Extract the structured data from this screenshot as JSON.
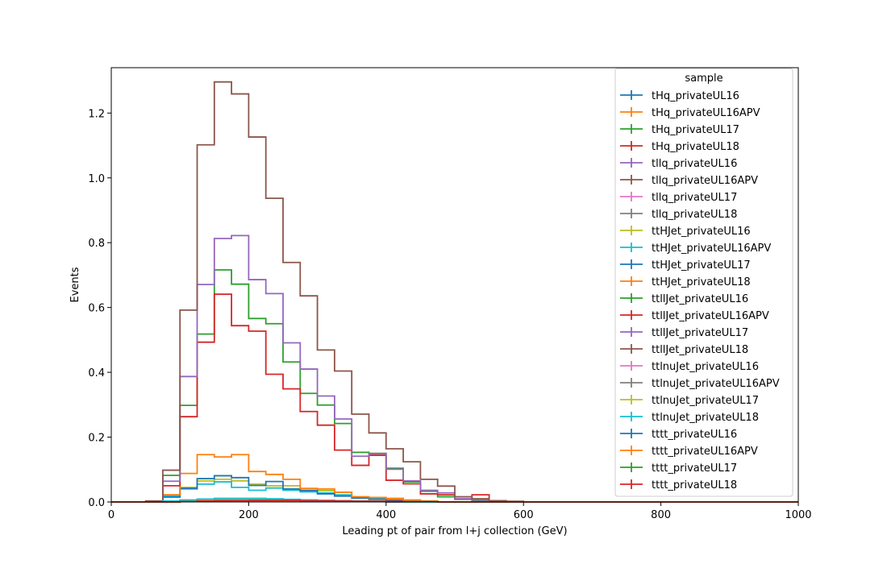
{
  "chart_data": {
    "type": "step-histogram",
    "xlabel": "Leading pt of pair from l+j collection (GeV)",
    "ylabel": "Events",
    "xlim": [
      0,
      1000
    ],
    "ylim": [
      0,
      1.34
    ],
    "xticks": [
      0,
      200,
      400,
      600,
      800,
      1000
    ],
    "yticks": [
      0.0,
      0.2,
      0.4,
      0.6,
      0.8,
      1.0,
      1.2
    ],
    "xtick_labels": [
      "0",
      "200",
      "400",
      "600",
      "800",
      "1000"
    ],
    "ytick_labels": [
      "0.0",
      "0.2",
      "0.4",
      "0.6",
      "0.8",
      "1.0",
      "1.2"
    ],
    "grid": false,
    "legend": {
      "title": "sample",
      "placement": "top-right"
    },
    "bin_edges": [
      0,
      25,
      50,
      75,
      100,
      125,
      150,
      175,
      200,
      225,
      250,
      275,
      300,
      325,
      350,
      375,
      400,
      425,
      450,
      475,
      500,
      525,
      550,
      575,
      600,
      625,
      650,
      675,
      700,
      725,
      750,
      775,
      800,
      825,
      850,
      875,
      900,
      925,
      950,
      975,
      1000
    ],
    "series": [
      {
        "name": "tHq_privateUL16",
        "color": "#1f77b4",
        "values": [
          0,
          0,
          0,
          0.002,
          0.003,
          0.004,
          0.004,
          0.004,
          0.004,
          0.003,
          0.003,
          0.002,
          0.002,
          0.001,
          0.001,
          0.001,
          0,
          0,
          0,
          0,
          0,
          0,
          0,
          0,
          0,
          0,
          0,
          0,
          0,
          0,
          0,
          0,
          0,
          0,
          0,
          0,
          0,
          0,
          0,
          0
        ]
      },
      {
        "name": "tHq_privateUL16APV",
        "color": "#ff7f0e",
        "values": [
          0,
          0,
          0,
          0.002,
          0.003,
          0.004,
          0.004,
          0.004,
          0.004,
          0.003,
          0.003,
          0.002,
          0.002,
          0.001,
          0.001,
          0.001,
          0,
          0,
          0,
          0,
          0,
          0,
          0,
          0,
          0,
          0,
          0,
          0,
          0,
          0,
          0,
          0,
          0,
          0,
          0,
          0,
          0,
          0,
          0,
          0
        ]
      },
      {
        "name": "tHq_privateUL17",
        "color": "#2ca02c",
        "values": [
          0,
          0,
          0,
          0.002,
          0.004,
          0.005,
          0.005,
          0.005,
          0.005,
          0.004,
          0.003,
          0.003,
          0.002,
          0.002,
          0.001,
          0.001,
          0,
          0,
          0,
          0,
          0,
          0,
          0,
          0,
          0,
          0,
          0,
          0,
          0,
          0,
          0,
          0,
          0,
          0,
          0,
          0,
          0,
          0,
          0,
          0
        ]
      },
      {
        "name": "tHq_privateUL18",
        "color": "#d62728",
        "values": [
          0,
          0,
          0,
          0.002,
          0.004,
          0.005,
          0.006,
          0.006,
          0.006,
          0.005,
          0.004,
          0.003,
          0.002,
          0.002,
          0.001,
          0.001,
          0,
          0,
          0,
          0,
          0,
          0,
          0,
          0,
          0,
          0,
          0,
          0,
          0,
          0,
          0,
          0,
          0,
          0,
          0,
          0,
          0,
          0,
          0,
          0
        ]
      },
      {
        "name": "tllq_privateUL16",
        "color": "#9467bd",
        "values": [
          0,
          0,
          0,
          0.002,
          0.003,
          0.004,
          0.005,
          0.005,
          0.005,
          0.004,
          0.004,
          0.003,
          0.002,
          0.002,
          0.001,
          0.001,
          0,
          0,
          0,
          0,
          0,
          0,
          0,
          0,
          0,
          0,
          0,
          0,
          0,
          0,
          0,
          0,
          0,
          0,
          0,
          0,
          0,
          0,
          0,
          0
        ]
      },
      {
        "name": "tllq_privateUL16APV",
        "color": "#8c564b",
        "values": [
          0,
          0,
          0,
          0.002,
          0.003,
          0.004,
          0.004,
          0.004,
          0.004,
          0.004,
          0.003,
          0.003,
          0.002,
          0.001,
          0.001,
          0.001,
          0,
          0,
          0,
          0,
          0,
          0,
          0,
          0,
          0,
          0,
          0,
          0,
          0,
          0,
          0,
          0,
          0,
          0,
          0,
          0,
          0,
          0,
          0,
          0
        ]
      },
      {
        "name": "tllq_privateUL17",
        "color": "#e377c2",
        "values": [
          0,
          0,
          0,
          0.002,
          0.004,
          0.005,
          0.006,
          0.006,
          0.006,
          0.005,
          0.004,
          0.003,
          0.003,
          0.002,
          0.001,
          0.001,
          0,
          0,
          0,
          0,
          0,
          0,
          0,
          0,
          0,
          0,
          0,
          0,
          0,
          0,
          0,
          0,
          0,
          0,
          0,
          0,
          0,
          0,
          0,
          0
        ]
      },
      {
        "name": "tllq_privateUL18",
        "color": "#7f7f7f",
        "values": [
          0,
          0,
          0,
          0.002,
          0.004,
          0.006,
          0.007,
          0.007,
          0.007,
          0.006,
          0.005,
          0.004,
          0.003,
          0.002,
          0.002,
          0.001,
          0,
          0,
          0,
          0,
          0,
          0,
          0,
          0,
          0,
          0,
          0,
          0,
          0,
          0,
          0,
          0,
          0,
          0,
          0,
          0,
          0,
          0,
          0,
          0
        ]
      },
      {
        "name": "ttHJet_privateUL16",
        "color": "#bcbd22",
        "values": [
          0,
          0,
          0,
          0.02,
          0.045,
          0.065,
          0.07,
          0.065,
          0.055,
          0.05,
          0.05,
          0.04,
          0.035,
          0.03,
          0.015,
          0.012,
          0.008,
          0.005,
          0.003,
          0,
          0,
          0,
          0,
          0,
          0,
          0,
          0,
          0,
          0,
          0,
          0,
          0,
          0,
          0,
          0,
          0,
          0,
          0,
          0,
          0
        ]
      },
      {
        "name": "ttHJet_privateUL16APV",
        "color": "#17becf",
        "values": [
          0,
          0,
          0,
          0.018,
          0.04,
          0.055,
          0.062,
          0.045,
          0.036,
          0.043,
          0.036,
          0.031,
          0.028,
          0.022,
          0.015,
          0.01,
          0.005,
          0.003,
          0.002,
          0,
          0,
          0,
          0,
          0,
          0,
          0,
          0,
          0,
          0,
          0,
          0,
          0,
          0,
          0,
          0,
          0,
          0,
          0,
          0,
          0
        ]
      },
      {
        "name": "ttHJet_privateUL17",
        "color": "#1f77b4",
        "values": [
          0,
          0,
          0,
          0.015,
          0.042,
          0.072,
          0.081,
          0.075,
          0.051,
          0.063,
          0.04,
          0.035,
          0.025,
          0.018,
          0.012,
          0.008,
          0.005,
          0.003,
          0.002,
          0,
          0,
          0,
          0,
          0,
          0,
          0,
          0,
          0,
          0,
          0,
          0,
          0,
          0,
          0,
          0,
          0,
          0,
          0,
          0,
          0
        ]
      },
      {
        "name": "ttHJet_privateUL18",
        "color": "#ff7f0e",
        "values": [
          0,
          0,
          0,
          0.022,
          0.088,
          0.146,
          0.139,
          0.146,
          0.094,
          0.085,
          0.07,
          0.042,
          0.04,
          0.03,
          0.016,
          0.014,
          0.011,
          0.006,
          0.003,
          0,
          0,
          0,
          0,
          0,
          0,
          0,
          0,
          0,
          0,
          0,
          0,
          0,
          0,
          0,
          0,
          0,
          0,
          0,
          0,
          0
        ]
      },
      {
        "name": "ttllJet_privateUL16",
        "color": "#2ca02c",
        "values": [
          0,
          0,
          0,
          0.082,
          0.298,
          0.518,
          0.716,
          0.672,
          0.566,
          0.55,
          0.432,
          0.335,
          0.299,
          0.242,
          0.153,
          0.15,
          0.104,
          0.062,
          0.033,
          0.016,
          0.008,
          0.004,
          0,
          0,
          0,
          0,
          0,
          0,
          0,
          0,
          0,
          0,
          0,
          0,
          0,
          0,
          0,
          0,
          0,
          0
        ]
      },
      {
        "name": "ttllJet_privateUL16APV",
        "color": "#d62728",
        "values": [
          0,
          0,
          0,
          0.05,
          0.263,
          0.493,
          0.641,
          0.544,
          0.527,
          0.394,
          0.349,
          0.279,
          0.237,
          0.16,
          0.113,
          0.144,
          0.067,
          0.056,
          0.025,
          0.022,
          0.009,
          0.022,
          0,
          0,
          0,
          0,
          0,
          0,
          0,
          0,
          0,
          0,
          0,
          0,
          0,
          0,
          0,
          0,
          0,
          0
        ]
      },
      {
        "name": "ttllJet_privateUL17",
        "color": "#9467bd",
        "values": [
          0,
          0,
          0,
          0.064,
          0.387,
          0.671,
          0.813,
          0.822,
          0.686,
          0.643,
          0.491,
          0.41,
          0.327,
          0.256,
          0.141,
          0.149,
          0.101,
          0.065,
          0.036,
          0.028,
          0.01,
          0.006,
          0,
          0,
          0,
          0,
          0,
          0,
          0,
          0,
          0,
          0,
          0,
          0,
          0,
          0,
          0,
          0,
          0,
          0
        ]
      },
      {
        "name": "ttllJet_privateUL18",
        "color": "#8c564b",
        "values": [
          0,
          0,
          0.003,
          0.098,
          0.592,
          1.102,
          1.296,
          1.259,
          1.126,
          0.937,
          0.739,
          0.636,
          0.469,
          0.404,
          0.271,
          0.213,
          0.164,
          0.124,
          0.07,
          0.049,
          0.016,
          0.01,
          0.004,
          0.002,
          0,
          0,
          0,
          0,
          0,
          0,
          0,
          0,
          0,
          0,
          0,
          0,
          0,
          0,
          0,
          0
        ]
      },
      {
        "name": "ttlnuJet_privateUL16",
        "color": "#e377c2",
        "values": [
          0,
          0,
          0,
          0.002,
          0.004,
          0.006,
          0.008,
          0.008,
          0.008,
          0.007,
          0.006,
          0.005,
          0.004,
          0.003,
          0.002,
          0.001,
          0.001,
          0,
          0,
          0,
          0,
          0,
          0,
          0,
          0,
          0,
          0,
          0,
          0,
          0,
          0,
          0,
          0,
          0,
          0,
          0,
          0,
          0,
          0,
          0
        ]
      },
      {
        "name": "ttlnuJet_privateUL16APV",
        "color": "#7f7f7f",
        "values": [
          0,
          0,
          0,
          0.002,
          0.004,
          0.006,
          0.008,
          0.008,
          0.008,
          0.007,
          0.006,
          0.005,
          0.004,
          0.003,
          0.002,
          0.001,
          0.001,
          0,
          0,
          0,
          0,
          0,
          0,
          0,
          0,
          0,
          0,
          0,
          0,
          0,
          0,
          0,
          0,
          0,
          0,
          0,
          0,
          0,
          0,
          0
        ]
      },
      {
        "name": "ttlnuJet_privateUL17",
        "color": "#bcbd22",
        "values": [
          0,
          0,
          0,
          0.002,
          0.005,
          0.007,
          0.009,
          0.009,
          0.009,
          0.008,
          0.007,
          0.006,
          0.004,
          0.003,
          0.002,
          0.001,
          0.001,
          0,
          0,
          0,
          0,
          0,
          0,
          0,
          0,
          0,
          0,
          0,
          0,
          0,
          0,
          0,
          0,
          0,
          0,
          0,
          0,
          0,
          0,
          0
        ]
      },
      {
        "name": "ttlnuJet_privateUL18",
        "color": "#17becf",
        "values": [
          0,
          0,
          0,
          0.003,
          0.006,
          0.009,
          0.011,
          0.011,
          0.011,
          0.01,
          0.008,
          0.006,
          0.005,
          0.004,
          0.003,
          0.002,
          0.001,
          0,
          0,
          0,
          0,
          0,
          0,
          0,
          0,
          0,
          0,
          0,
          0,
          0,
          0,
          0,
          0,
          0,
          0,
          0,
          0,
          0,
          0,
          0
        ]
      },
      {
        "name": "tttt_privateUL16",
        "color": "#1f77b4",
        "values": [
          0,
          0,
          0,
          0,
          0.001,
          0.002,
          0.003,
          0.003,
          0.003,
          0.003,
          0.003,
          0.003,
          0.003,
          0.002,
          0.002,
          0.002,
          0.001,
          0.001,
          0.001,
          0,
          0,
          0,
          0,
          0,
          0,
          0,
          0,
          0,
          0,
          0,
          0,
          0,
          0,
          0,
          0,
          0,
          0,
          0,
          0,
          0
        ]
      },
      {
        "name": "tttt_privateUL16APV",
        "color": "#ff7f0e",
        "values": [
          0,
          0,
          0,
          0,
          0.001,
          0.002,
          0.003,
          0.003,
          0.003,
          0.003,
          0.003,
          0.003,
          0.003,
          0.002,
          0.002,
          0.002,
          0.001,
          0.001,
          0.001,
          0,
          0,
          0,
          0,
          0,
          0,
          0,
          0,
          0,
          0,
          0,
          0,
          0,
          0,
          0,
          0,
          0,
          0,
          0,
          0,
          0
        ]
      },
      {
        "name": "tttt_privateUL17",
        "color": "#2ca02c",
        "values": [
          0,
          0,
          0,
          0,
          0.001,
          0.002,
          0.003,
          0.004,
          0.004,
          0.004,
          0.004,
          0.003,
          0.003,
          0.003,
          0.002,
          0.002,
          0.001,
          0.001,
          0.001,
          0,
          0,
          0,
          0,
          0,
          0,
          0,
          0,
          0,
          0,
          0,
          0,
          0,
          0,
          0,
          0,
          0,
          0,
          0,
          0,
          0
        ]
      },
      {
        "name": "tttt_privateUL18",
        "color": "#d62728",
        "values": [
          0,
          0,
          0,
          0,
          0.001,
          0.003,
          0.004,
          0.004,
          0.005,
          0.005,
          0.005,
          0.004,
          0.004,
          0.003,
          0.002,
          0.002,
          0.002,
          0.001,
          0.001,
          0,
          0,
          0,
          0,
          0,
          0,
          0,
          0,
          0,
          0,
          0,
          0,
          0,
          0,
          0,
          0,
          0,
          0,
          0,
          0,
          0
        ]
      }
    ]
  }
}
